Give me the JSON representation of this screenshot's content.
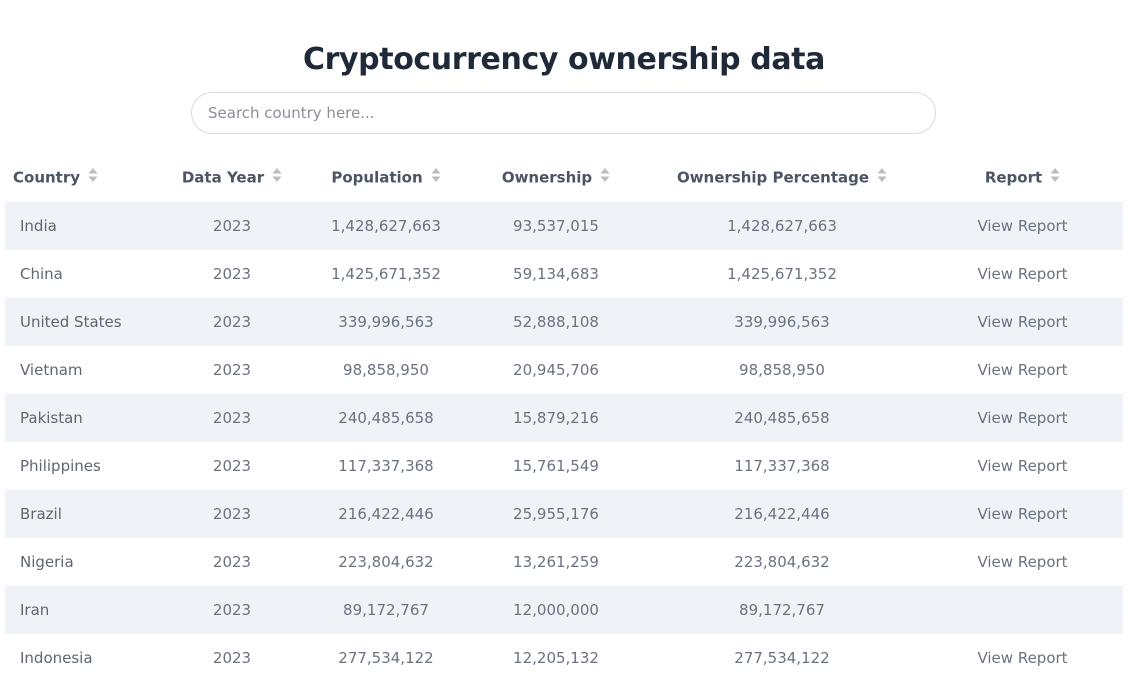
{
  "page": {
    "title": "Cryptocurrency ownership data"
  },
  "search": {
    "placeholder": "Search country here..."
  },
  "table": {
    "headers": {
      "country": "Country",
      "data_year": "Data Year",
      "population": "Population",
      "ownership": "Ownership",
      "ownership_percentage": "Ownership Percentage",
      "report": "Report"
    },
    "rows": [
      {
        "country": "India",
        "year": "2023",
        "population": "1,428,627,663",
        "ownership": "93,537,015",
        "percentage": "1,428,627,663",
        "report": "View Report"
      },
      {
        "country": "China",
        "year": "2023",
        "population": "1,425,671,352",
        "ownership": "59,134,683",
        "percentage": "1,425,671,352",
        "report": "View Report"
      },
      {
        "country": "United States",
        "year": "2023",
        "population": "339,996,563",
        "ownership": "52,888,108",
        "percentage": "339,996,563",
        "report": "View Report"
      },
      {
        "country": "Vietnam",
        "year": "2023",
        "population": "98,858,950",
        "ownership": "20,945,706",
        "percentage": "98,858,950",
        "report": "View Report"
      },
      {
        "country": "Pakistan",
        "year": "2023",
        "population": "240,485,658",
        "ownership": "15,879,216",
        "percentage": "240,485,658",
        "report": "View Report"
      },
      {
        "country": "Philippines",
        "year": "2023",
        "population": "117,337,368",
        "ownership": "15,761,549",
        "percentage": "117,337,368",
        "report": "View Report"
      },
      {
        "country": "Brazil",
        "year": "2023",
        "population": "216,422,446",
        "ownership": "25,955,176",
        "percentage": "216,422,446",
        "report": "View Report"
      },
      {
        "country": "Nigeria",
        "year": "2023",
        "population": "223,804,632",
        "ownership": "13,261,259",
        "percentage": "223,804,632",
        "report": "View Report"
      },
      {
        "country": "Iran",
        "year": "2023",
        "population": "89,172,767",
        "ownership": "12,000,000",
        "percentage": "89,172,767",
        "report": ""
      },
      {
        "country": "Indonesia",
        "year": "2023",
        "population": "277,534,122",
        "ownership": "12,205,132",
        "percentage": "277,534,122",
        "report": "View Report"
      }
    ]
  },
  "icons": {
    "sort": "sort-icon"
  },
  "colors": {
    "title": "#1f2937",
    "header_text": "#4b5563",
    "cell_text": "#6b7280",
    "stripe": "#eff3f8",
    "sort_icon": "#b8bdc6"
  }
}
